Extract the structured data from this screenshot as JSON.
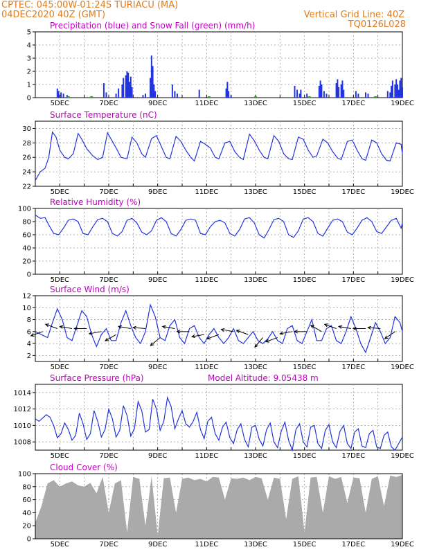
{
  "header": {
    "line1": "CPTEC:   045:00W-01:24S   TURIACU (MA)",
    "line2": "04DEC2020 40Z (GMT)",
    "right1": "Vertical Grid Line: 40Z",
    "right2": "TQ0126L028"
  },
  "colors": {
    "header": "#e07a18",
    "title": "#c000c0",
    "series": "#2233dd",
    "snow": "#22aa22",
    "cloud": "#aaaaaa",
    "grid": "#999999"
  },
  "chart_data": [
    {
      "type": "bar",
      "id": "precip",
      "title": "Precipitation (blue) and Snow Fall (green) (mm/h)",
      "ylim": [
        0,
        5
      ],
      "yticks": [
        0,
        1,
        2,
        3,
        4,
        5
      ],
      "x_tick_labels": [
        "5DEC",
        "7DEC",
        "9DEC",
        "11DEC",
        "13DEC",
        "15DEC",
        "17DEC",
        "19DEC"
      ],
      "x_tick_days": [
        1,
        3,
        5,
        7,
        9,
        11,
        13,
        15
      ],
      "x_range_days": [
        0,
        15
      ],
      "bars_blue": [
        [
          0.9,
          0.7
        ],
        [
          0.95,
          0.5
        ],
        [
          1.05,
          0.4
        ],
        [
          1.15,
          0.3
        ],
        [
          1.3,
          0.2
        ],
        [
          2.8,
          1.1
        ],
        [
          2.9,
          0.4
        ],
        [
          3.3,
          0.3
        ],
        [
          3.4,
          0.7
        ],
        [
          3.55,
          1.0
        ],
        [
          3.6,
          1.5
        ],
        [
          3.7,
          1.7
        ],
        [
          3.75,
          2.0
        ],
        [
          3.8,
          1.9
        ],
        [
          3.85,
          1.2
        ],
        [
          3.9,
          1.6
        ],
        [
          3.95,
          0.8
        ],
        [
          4.4,
          0.2
        ],
        [
          4.5,
          0.3
        ],
        [
          4.7,
          1.5
        ],
        [
          4.75,
          3.2
        ],
        [
          4.8,
          2.4
        ],
        [
          4.85,
          1.0
        ],
        [
          4.9,
          0.5
        ],
        [
          5.6,
          1.0
        ],
        [
          5.7,
          0.5
        ],
        [
          5.8,
          0.3
        ],
        [
          6.7,
          0.6
        ],
        [
          7.8,
          0.7
        ],
        [
          7.85,
          1.2
        ],
        [
          7.9,
          0.5
        ],
        [
          8.0,
          0.2
        ],
        [
          10.6,
          0.9
        ],
        [
          10.7,
          0.6
        ],
        [
          10.8,
          0.3
        ],
        [
          10.85,
          0.6
        ],
        [
          11.1,
          0.3
        ],
        [
          11.6,
          0.9
        ],
        [
          11.65,
          1.3
        ],
        [
          11.7,
          1.0
        ],
        [
          11.8,
          0.5
        ],
        [
          11.9,
          0.3
        ],
        [
          12.3,
          1.1
        ],
        [
          12.35,
          1.4
        ],
        [
          12.4,
          0.8
        ],
        [
          12.5,
          1.0
        ],
        [
          12.55,
          1.3
        ],
        [
          12.6,
          0.6
        ],
        [
          13.1,
          0.5
        ],
        [
          13.2,
          0.3
        ],
        [
          13.5,
          0.4
        ],
        [
          13.6,
          0.3
        ],
        [
          14.4,
          0.5
        ],
        [
          14.5,
          0.4
        ],
        [
          14.55,
          0.9
        ],
        [
          14.6,
          1.3
        ],
        [
          14.7,
          1.0
        ],
        [
          14.75,
          1.4
        ],
        [
          14.8,
          1.0
        ],
        [
          14.85,
          0.6
        ],
        [
          14.9,
          1.3
        ],
        [
          14.95,
          1.5
        ],
        [
          15.0,
          0.8
        ]
      ],
      "bars_green": [
        [
          1.35,
          0.05
        ],
        [
          2.3,
          0.06
        ],
        [
          7.1,
          0.05
        ],
        [
          9.0,
          0.05
        ],
        [
          11.2,
          0.05
        ],
        [
          13.9,
          0.05
        ]
      ]
    },
    {
      "type": "line",
      "id": "temp",
      "title": "Surface Temperature (nC)",
      "ylim": [
        22,
        31
      ],
      "yticks": [
        22,
        24,
        26,
        28,
        30
      ],
      "x_tick_labels": [
        "5DEC",
        "7DEC",
        "9DEC",
        "11DEC",
        "13DEC",
        "15DEC",
        "17DEC",
        "19DEC"
      ],
      "x_tick_days": [
        1,
        3,
        5,
        7,
        9,
        11,
        13,
        15
      ],
      "x": [
        0,
        0.2,
        0.4,
        0.55,
        0.7,
        0.85,
        1.0,
        1.2,
        1.35,
        1.55,
        1.75,
        1.9,
        2.1,
        2.35,
        2.55,
        2.75,
        2.95,
        3.15,
        3.35,
        3.5,
        3.75,
        3.95,
        4.15,
        4.35,
        4.5,
        4.75,
        4.95,
        5.15,
        5.35,
        5.5,
        5.75,
        5.95,
        6.15,
        6.35,
        6.5,
        6.75,
        6.95,
        7.15,
        7.35,
        7.5,
        7.75,
        7.95,
        8.15,
        8.35,
        8.5,
        8.75,
        8.95,
        9.15,
        9.35,
        9.5,
        9.75,
        9.95,
        10.15,
        10.35,
        10.5,
        10.75,
        10.95,
        11.15,
        11.35,
        11.5,
        11.75,
        11.95,
        12.15,
        12.35,
        12.5,
        12.75,
        12.95,
        13.15,
        13.35,
        13.5,
        13.75,
        13.95,
        14.15,
        14.35,
        14.5,
        14.75,
        14.95,
        15.0
      ],
      "y": [
        22.8,
        24.0,
        24.5,
        26.0,
        29.5,
        28.8,
        27.0,
        26.0,
        25.8,
        26.5,
        29.3,
        28.5,
        27.2,
        26.2,
        25.7,
        26.0,
        29.4,
        28.2,
        27.0,
        26.0,
        25.8,
        28.8,
        28.0,
        26.5,
        26.0,
        28.6,
        29.0,
        27.5,
        26.0,
        25.8,
        28.9,
        28.2,
        27.0,
        26.0,
        25.5,
        28.2,
        27.8,
        27.3,
        26.0,
        25.8,
        28.0,
        28.2,
        26.8,
        26.0,
        25.7,
        29.2,
        28.3,
        27.0,
        26.0,
        25.8,
        29.0,
        28.2,
        26.5,
        25.8,
        25.7,
        28.8,
        28.5,
        27.0,
        26.0,
        26.2,
        28.5,
        28.0,
        26.8,
        25.9,
        25.7,
        28.2,
        28.4,
        27.0,
        25.8,
        25.6,
        28.4,
        28.0,
        26.5,
        25.6,
        25.5,
        28.0,
        27.8,
        26.5
      ]
    },
    {
      "type": "line",
      "id": "rh",
      "title": "Relative Humidity (%)",
      "ylim": [
        0,
        100
      ],
      "yticks": [
        0,
        20,
        40,
        60,
        80,
        100
      ],
      "x_tick_labels": [
        "5DEC",
        "7DEC",
        "9DEC",
        "11DEC",
        "13DEC",
        "15DEC",
        "17DEC",
        "19DEC"
      ],
      "x_tick_days": [
        1,
        3,
        5,
        7,
        9,
        11,
        13,
        15
      ],
      "x": [
        0,
        0.2,
        0.4,
        0.55,
        0.75,
        0.95,
        1.15,
        1.35,
        1.55,
        1.75,
        1.95,
        2.15,
        2.35,
        2.55,
        2.75,
        2.95,
        3.15,
        3.35,
        3.55,
        3.75,
        3.95,
        4.15,
        4.35,
        4.55,
        4.75,
        4.95,
        5.15,
        5.35,
        5.55,
        5.75,
        5.95,
        6.15,
        6.35,
        6.55,
        6.75,
        6.95,
        7.15,
        7.35,
        7.55,
        7.75,
        7.95,
        8.15,
        8.35,
        8.55,
        8.75,
        8.95,
        9.15,
        9.35,
        9.55,
        9.75,
        9.95,
        10.15,
        10.35,
        10.55,
        10.75,
        10.95,
        11.15,
        11.35,
        11.55,
        11.75,
        11.95,
        12.15,
        12.35,
        12.55,
        12.75,
        12.95,
        13.15,
        13.35,
        13.55,
        13.75,
        13.95,
        14.15,
        14.35,
        14.55,
        14.75,
        14.95,
        15.0
      ],
      "y": [
        90,
        85,
        86,
        75,
        62,
        60,
        70,
        82,
        84,
        80,
        62,
        60,
        72,
        83,
        85,
        80,
        62,
        58,
        65,
        82,
        85,
        78,
        64,
        60,
        66,
        82,
        86,
        80,
        62,
        58,
        68,
        82,
        84,
        82,
        62,
        60,
        72,
        80,
        82,
        78,
        62,
        58,
        68,
        84,
        86,
        78,
        60,
        55,
        68,
        83,
        85,
        80,
        60,
        56,
        66,
        84,
        86,
        80,
        62,
        58,
        70,
        82,
        84,
        80,
        64,
        60,
        70,
        82,
        86,
        80,
        65,
        62,
        72,
        82,
        85,
        70,
        78
      ]
    },
    {
      "type": "line",
      "id": "wind",
      "title": "Surface Wind (m/s)",
      "ylim": [
        1,
        12
      ],
      "yticks": [
        2,
        4,
        6,
        8,
        10,
        12
      ],
      "x_tick_labels": [
        "5DEC",
        "7DEC",
        "9DEC",
        "11DEC",
        "13DEC",
        "15DEC",
        "17DEC",
        "19DEC"
      ],
      "x_tick_days": [
        1,
        3,
        5,
        7,
        9,
        11,
        13,
        15
      ],
      "x": [
        0,
        0.25,
        0.5,
        0.7,
        0.9,
        1.1,
        1.3,
        1.5,
        1.7,
        1.9,
        2.1,
        2.3,
        2.5,
        2.7,
        2.9,
        3.1,
        3.3,
        3.5,
        3.7,
        3.9,
        4.1,
        4.3,
        4.5,
        4.7,
        4.9,
        5.1,
        5.3,
        5.5,
        5.7,
        5.9,
        6.1,
        6.3,
        6.5,
        6.7,
        6.9,
        7.1,
        7.3,
        7.5,
        7.7,
        7.9,
        8.1,
        8.3,
        8.5,
        8.7,
        8.9,
        9.1,
        9.3,
        9.5,
        9.7,
        9.9,
        10.1,
        10.3,
        10.5,
        10.7,
        10.9,
        11.1,
        11.3,
        11.5,
        11.7,
        11.9,
        12.1,
        12.3,
        12.5,
        12.7,
        12.9,
        13.1,
        13.3,
        13.5,
        13.7,
        13.9,
        14.1,
        14.3,
        14.5,
        14.7,
        14.9,
        15.0
      ],
      "y": [
        6,
        5.5,
        5,
        7.5,
        9.8,
        8,
        5,
        4.5,
        7,
        9.5,
        8.5,
        5.5,
        3.5,
        5.5,
        6.5,
        4.5,
        4.5,
        7.5,
        9.5,
        7,
        5,
        4,
        6,
        10.5,
        8.5,
        5,
        4.5,
        7,
        8,
        5,
        4,
        6.5,
        7,
        5,
        4,
        5.5,
        6.5,
        5,
        4,
        5,
        6.5,
        4.5,
        4,
        5,
        6,
        4.5,
        4,
        4.8,
        6,
        4.5,
        4,
        6.5,
        7,
        4.5,
        4,
        6,
        8,
        4.5,
        4.5,
        6.5,
        7,
        4.5,
        4,
        6,
        8.5,
        6.5,
        4,
        2.5,
        5,
        7.5,
        6,
        4,
        5,
        8.5,
        7.5,
        6
      ]
    },
    {
      "type": "line",
      "id": "pressure",
      "title": "Surface Pressure (hPa)",
      "annotation": "Model Altitude: 9.05438 m",
      "ylim": [
        1007,
        1015
      ],
      "yticks": [
        1008,
        1010,
        1012,
        1014
      ],
      "x_tick_labels": [
        "5DEC",
        "7DEC",
        "9DEC",
        "11DEC",
        "13DEC",
        "15DEC",
        "17DEC",
        "19DEC"
      ],
      "x_tick_days": [
        1,
        3,
        5,
        7,
        9,
        11,
        13,
        15
      ],
      "x": [
        0,
        0.15,
        0.3,
        0.45,
        0.6,
        0.75,
        0.9,
        1.05,
        1.2,
        1.35,
        1.5,
        1.65,
        1.8,
        1.95,
        2.1,
        2.25,
        2.4,
        2.55,
        2.7,
        2.85,
        3.0,
        3.15,
        3.3,
        3.45,
        3.6,
        3.75,
        3.9,
        4.05,
        4.2,
        4.35,
        4.5,
        4.65,
        4.8,
        4.95,
        5.1,
        5.25,
        5.4,
        5.55,
        5.7,
        5.85,
        6.0,
        6.15,
        6.3,
        6.45,
        6.6,
        6.75,
        6.9,
        7.05,
        7.2,
        7.35,
        7.5,
        7.65,
        7.8,
        7.95,
        8.1,
        8.25,
        8.4,
        8.55,
        8.7,
        8.85,
        9.0,
        9.15,
        9.3,
        9.45,
        9.6,
        9.75,
        9.9,
        10.05,
        10.2,
        10.35,
        10.5,
        10.65,
        10.8,
        10.95,
        11.1,
        11.25,
        11.4,
        11.55,
        11.7,
        11.85,
        12.0,
        12.15,
        12.3,
        12.45,
        12.6,
        12.75,
        12.9,
        13.05,
        13.2,
        13.35,
        13.5,
        13.65,
        13.8,
        13.95,
        14.1,
        14.25,
        14.4,
        14.55,
        14.7,
        14.85,
        15.0
      ],
      "y": [
        1010.8,
        1010.5,
        1010.9,
        1011.3,
        1011.0,
        1010.0,
        1008.5,
        1009.0,
        1010.3,
        1009.5,
        1008.2,
        1008.8,
        1011.5,
        1010.2,
        1008.3,
        1009.0,
        1011.8,
        1010.5,
        1008.6,
        1009.5,
        1012.0,
        1010.8,
        1008.6,
        1009.4,
        1012.4,
        1011.2,
        1008.7,
        1009.6,
        1012.9,
        1011.8,
        1009.2,
        1009.5,
        1013.2,
        1012.0,
        1009.4,
        1010.5,
        1013.4,
        1012.3,
        1009.6,
        1010.8,
        1011.8,
        1010.2,
        1009.8,
        1010.5,
        1011.6,
        1009.5,
        1008.4,
        1010.5,
        1011.0,
        1009.0,
        1008.2,
        1009.8,
        1010.4,
        1008.5,
        1007.8,
        1009.5,
        1010.2,
        1008.3,
        1007.4,
        1009.8,
        1010.0,
        1008.3,
        1007.5,
        1009.5,
        1010.3,
        1008.0,
        1007.3,
        1009.3,
        1010.4,
        1008.2,
        1007.0,
        1009.5,
        1010.2,
        1008.0,
        1007.4,
        1009.8,
        1010.0,
        1007.8,
        1007.2,
        1009.4,
        1010.1,
        1008.0,
        1007.3,
        1009.3,
        1010.0,
        1007.8,
        1007.2,
        1009.2,
        1009.6,
        1007.5,
        1007.3,
        1009.0,
        1009.4,
        1007.4,
        1007.2,
        1008.8,
        1009.2,
        1007.4,
        1007.0,
        1007.8,
        1008.6
      ]
    },
    {
      "type": "area",
      "id": "cloud",
      "title": "Cloud Cover (%)",
      "ylim": [
        0,
        100
      ],
      "yticks": [
        0,
        20,
        40,
        60,
        80,
        100
      ],
      "x_tick_labels": [
        "5DEC",
        "7DEC",
        "9DEC",
        "11DEC",
        "13DEC",
        "15DEC",
        "17DEC",
        "19DEC"
      ],
      "x_tick_days": [
        1,
        3,
        5,
        7,
        9,
        11,
        13,
        15
      ],
      "x": [
        0,
        0.25,
        0.5,
        0.75,
        1.0,
        1.25,
        1.5,
        1.75,
        2.0,
        2.25,
        2.5,
        2.75,
        3.0,
        3.25,
        3.5,
        3.75,
        4.0,
        4.25,
        4.5,
        4.75,
        5.0,
        5.25,
        5.5,
        5.75,
        6.0,
        6.25,
        6.5,
        6.75,
        7.0,
        7.25,
        7.5,
        7.75,
        8.0,
        8.25,
        8.5,
        8.75,
        9.0,
        9.25,
        9.5,
        9.75,
        10.0,
        10.25,
        10.5,
        10.75,
        11.0,
        11.25,
        11.5,
        11.75,
        12.0,
        12.25,
        12.5,
        12.75,
        13.0,
        13.25,
        13.5,
        13.75,
        14.0,
        14.25,
        14.5,
        14.75,
        15.0
      ],
      "y": [
        25,
        50,
        85,
        90,
        80,
        85,
        88,
        82,
        80,
        86,
        70,
        95,
        40,
        85,
        90,
        10,
        95,
        92,
        20,
        96,
        5,
        93,
        94,
        40,
        92,
        94,
        90,
        92,
        88,
        95,
        94,
        60,
        93,
        92,
        94,
        90,
        95,
        93,
        60,
        94,
        92,
        30,
        92,
        96,
        10,
        94,
        95,
        40,
        96,
        92,
        95,
        55,
        94,
        93,
        40,
        92,
        96,
        50,
        97,
        95,
        98
      ]
    }
  ],
  "wind_vectors": {
    "x_days": [
      0.3,
      0.9,
      1.5,
      2.1,
      2.7,
      3.3,
      3.9,
      4.5,
      5.1,
      5.7,
      6.3,
      6.9,
      7.5,
      8.1,
      8.7,
      9.3,
      9.9,
      10.5,
      11.1,
      11.7,
      12.3,
      12.9,
      13.5,
      14.1,
      14.7
    ],
    "y_ms": [
      6,
      6.5,
      6.5,
      6.5,
      6,
      5.5,
      6.5,
      6.5,
      5,
      6.5,
      6,
      5.5,
      5.5,
      6,
      5.5,
      5,
      5,
      6,
      6,
      6,
      6.5,
      6.5,
      6.5,
      6.5,
      6
    ],
    "dir_deg": [
      200,
      160,
      170,
      180,
      190,
      210,
      170,
      175,
      220,
      170,
      180,
      190,
      200,
      170,
      160,
      230,
      200,
      190,
      180,
      150,
      160,
      170,
      180,
      175,
      215
    ]
  }
}
